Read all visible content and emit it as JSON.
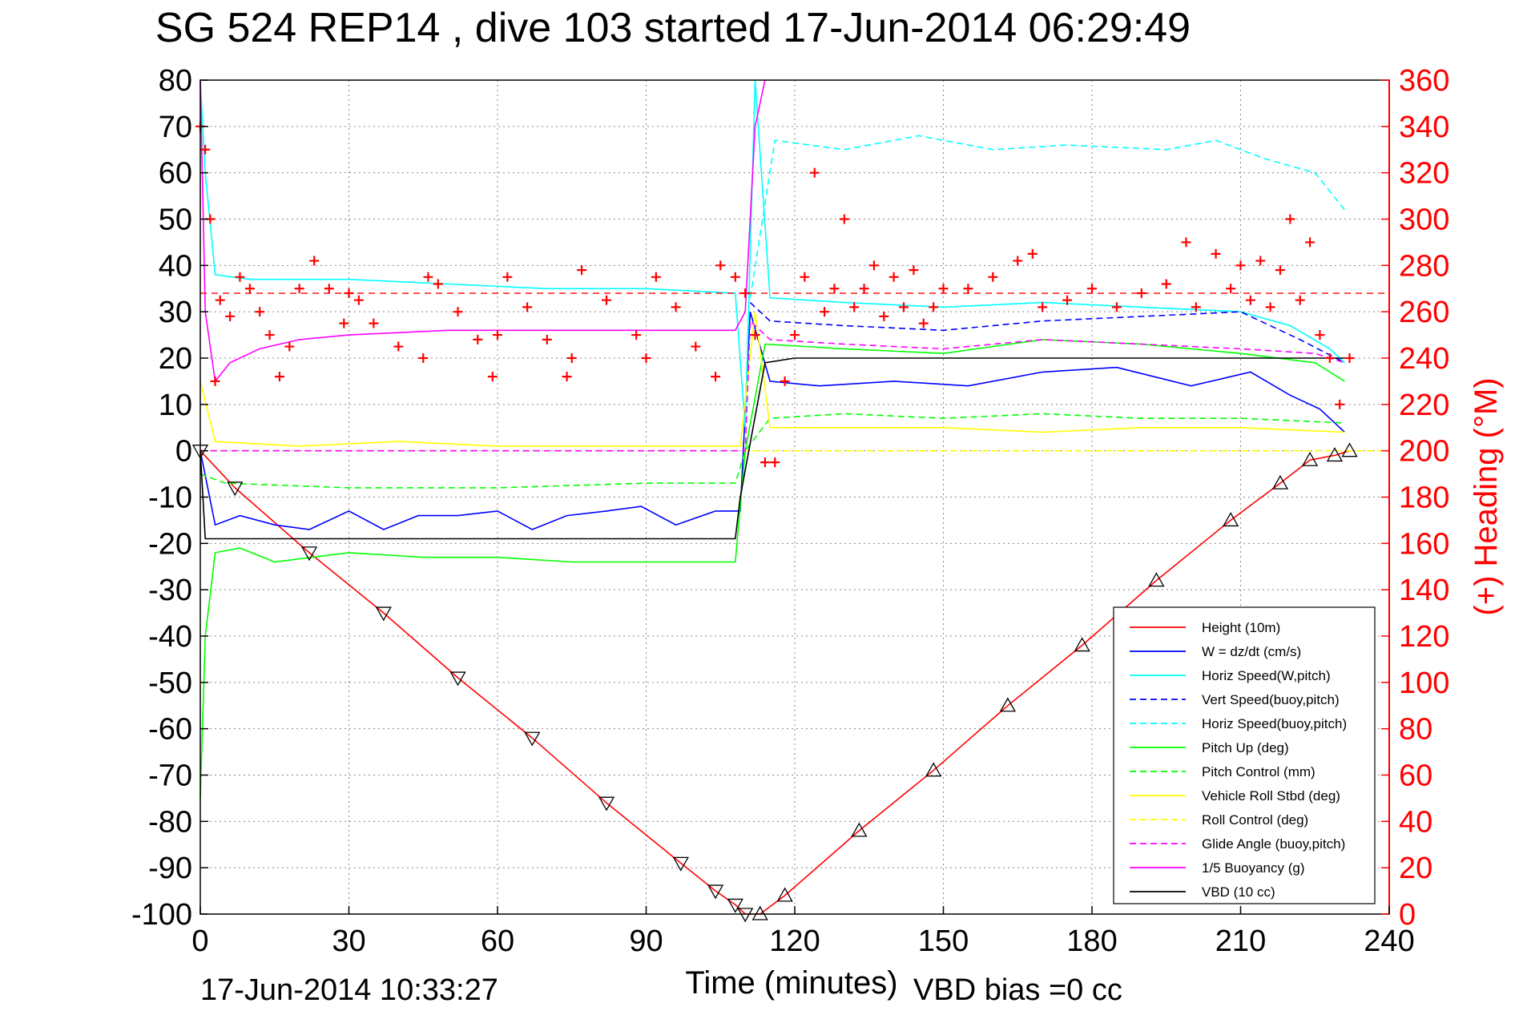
{
  "title": "SG 524   REP14  , dive 103 started 17-Jun-2014 06:29:49",
  "footer": {
    "timestamp": "17-Jun-2014 10:33:27",
    "vbd_bias": "VBD bias =0 cc"
  },
  "colors": {
    "height": "#ff0000",
    "w": "#0000ff",
    "horiz": "#00ffff",
    "pitch": "#00ff00",
    "roll": "#ffff00",
    "glide": "#ff00ff",
    "buoy": "#ff00ff",
    "vbd": "#000000",
    "heading": "#ff0000"
  },
  "chart_data": {
    "type": "line",
    "xlabel": "Time (minutes)",
    "ylabel_right": "(+) Heading (°M)",
    "xlim": [
      0,
      240
    ],
    "ylim": [
      -100,
      80
    ],
    "y2lim": [
      0,
      360
    ],
    "xticks": [
      0,
      30,
      60,
      90,
      120,
      150,
      180,
      210,
      240
    ],
    "yticks": [
      80,
      70,
      60,
      50,
      40,
      30,
      20,
      10,
      0,
      -10,
      -20,
      -30,
      -40,
      -50,
      -60,
      -70,
      -80,
      -90,
      -100
    ],
    "y2ticks": [
      360,
      340,
      320,
      300,
      280,
      260,
      240,
      220,
      200,
      180,
      160,
      140,
      120,
      100,
      80,
      60,
      40,
      20,
      0
    ],
    "grid": true,
    "legend_position": "bottom-right",
    "series": [
      {
        "name": "Height (10m)",
        "color": "#ff0000",
        "dash": "solid",
        "x": [
          0,
          7,
          22,
          37,
          52,
          67,
          82,
          97,
          104,
          108,
          110,
          113,
          118,
          133,
          148,
          163,
          178,
          193,
          208,
          218,
          224,
          229,
          232
        ],
        "y": [
          0,
          -8,
          -22,
          -35,
          -49,
          -62,
          -76,
          -89,
          -95,
          -98,
          -100,
          -100,
          -96,
          -82,
          -69,
          -55,
          -42,
          -28,
          -15,
          -7,
          -2,
          -1,
          0
        ]
      },
      {
        "name": "W = dz/dt (cm/s)",
        "color": "#0000ff",
        "dash": "solid",
        "x": [
          0,
          3,
          8,
          15,
          22,
          30,
          37,
          44,
          52,
          60,
          67,
          74,
          82,
          89,
          96,
          104,
          109,
          111,
          115,
          125,
          140,
          155,
          170,
          185,
          200,
          212,
          220,
          226,
          231
        ],
        "y": [
          0,
          -16,
          -14,
          -16,
          -17,
          -13,
          -17,
          -14,
          -14,
          -13,
          -17,
          -14,
          -13,
          -12,
          -16,
          -13,
          -13,
          30,
          15,
          14,
          15,
          14,
          17,
          18,
          14,
          17,
          12,
          9,
          4
        ]
      },
      {
        "name": "Horiz Speed(W,pitch)",
        "color": "#00ffff",
        "dash": "solid",
        "x": [
          0,
          1,
          3,
          10,
          30,
          50,
          70,
          90,
          108,
          110,
          112,
          115,
          130,
          150,
          170,
          190,
          210,
          220,
          228,
          231
        ],
        "y": [
          80,
          60,
          38,
          37,
          37,
          36,
          35,
          35,
          34,
          5,
          80,
          33,
          32,
          31,
          32,
          31,
          30,
          27,
          22,
          19
        ]
      },
      {
        "name": "Vert Speed(buoy,pitch)",
        "color": "#0000ff",
        "dash": "dash",
        "x": [
          111,
          115,
          130,
          150,
          170,
          190,
          210,
          222,
          231
        ],
        "y": [
          32,
          28,
          27,
          26,
          28,
          29,
          30,
          24,
          19
        ]
      },
      {
        "name": "Horiz Speed(buoy,pitch)",
        "color": "#00ffff",
        "dash": "dash",
        "x": [
          111,
          116,
          130,
          145,
          160,
          175,
          195,
          205,
          215,
          225,
          231
        ],
        "y": [
          33,
          67,
          65,
          68,
          65,
          66,
          65,
          67,
          63,
          60,
          52
        ]
      },
      {
        "name": "Pitch Up (deg)",
        "color": "#00ff00",
        "dash": "solid",
        "x": [
          0,
          1,
          3,
          8,
          15,
          30,
          45,
          60,
          75,
          90,
          108,
          110,
          114,
          130,
          150,
          170,
          190,
          210,
          225,
          231
        ],
        "y": [
          -75,
          -40,
          -22,
          -21,
          -24,
          -22,
          -23,
          -23,
          -24,
          -24,
          -24,
          0,
          23,
          22,
          21,
          24,
          23,
          21,
          19,
          15
        ]
      },
      {
        "name": "Pitch Control (mm)",
        "color": "#00ff00",
        "dash": "dash",
        "x": [
          0,
          5,
          30,
          60,
          90,
          108,
          110,
          115,
          130,
          150,
          170,
          190,
          210,
          231
        ],
        "y": [
          -5,
          -7,
          -8,
          -8,
          -7,
          -7,
          0,
          7,
          8,
          7,
          8,
          7,
          7,
          6
        ]
      },
      {
        "name": "Vehicle Roll Stbd (deg)",
        "color": "#ffff00",
        "dash": "solid",
        "x": [
          0,
          3,
          20,
          40,
          60,
          80,
          100,
          109,
          112,
          115,
          130,
          150,
          170,
          190,
          210,
          231
        ],
        "y": [
          15,
          2,
          1,
          2,
          1,
          1,
          1,
          1,
          30,
          5,
          5,
          5,
          4,
          5,
          5,
          4
        ]
      },
      {
        "name": "Roll Control (deg)",
        "color": "#ffff00",
        "dash": "dash",
        "x": [
          0,
          240
        ],
        "y": [
          0,
          0
        ]
      },
      {
        "name": "Glide Angle (buoy,pitch)",
        "color": "#ff00ff",
        "dash": "dash",
        "x": [
          0,
          110,
          111,
          115,
          130,
          150,
          170,
          190,
          210,
          225,
          231
        ],
        "y": [
          0,
          0,
          28,
          24,
          23,
          22,
          24,
          23,
          22,
          21,
          19
        ]
      },
      {
        "name": "1/5 Buoyancy (g)",
        "color": "#ff00ff",
        "dash": "solid",
        "x": [
          0,
          1,
          3,
          6,
          12,
          20,
          30,
          50,
          80,
          108,
          110,
          112,
          114
        ],
        "y": [
          80,
          30,
          15,
          19,
          22,
          24,
          25,
          26,
          26,
          26,
          30,
          70,
          80
        ]
      },
      {
        "name": "VBD (10 cc)",
        "color": "#000000",
        "dash": "solid",
        "x": [
          0,
          1,
          30,
          60,
          90,
          108,
          109,
          114,
          120,
          150,
          180,
          210,
          231
        ],
        "y": [
          0,
          -19,
          -19,
          -19,
          -19,
          -19,
          -10,
          19,
          20,
          20,
          20,
          20,
          20
        ]
      }
    ],
    "heading": {
      "name": "(+) Heading",
      "axis": "right",
      "color": "#ff0000",
      "target": 268,
      "x": [
        0,
        1,
        2,
        3,
        4,
        6,
        8,
        10,
        12,
        14,
        16,
        18,
        20,
        23,
        26,
        29,
        30,
        32,
        35,
        40,
        45,
        46,
        48,
        52,
        56,
        59,
        60,
        62,
        66,
        70,
        74,
        75,
        77,
        82,
        88,
        90,
        92,
        96,
        100,
        104,
        105,
        108,
        110,
        112,
        114,
        116,
        118,
        120,
        122,
        124,
        126,
        128,
        130,
        132,
        134,
        136,
        138,
        140,
        142,
        144,
        146,
        148,
        150,
        155,
        160,
        165,
        168,
        170,
        175,
        180,
        185,
        190,
        195,
        199,
        201,
        205,
        208,
        210,
        212,
        214,
        216,
        218,
        220,
        222,
        224,
        226,
        228,
        230,
        232
      ],
      "y": [
        340,
        330,
        300,
        230,
        265,
        258,
        275,
        270,
        260,
        250,
        232,
        245,
        270,
        282,
        270,
        255,
        268,
        265,
        255,
        245,
        240,
        275,
        272,
        260,
        248,
        232,
        250,
        275,
        262,
        248,
        232,
        240,
        278,
        265,
        250,
        240,
        275,
        262,
        245,
        232,
        280,
        275,
        268,
        250,
        195,
        195,
        230,
        250,
        275,
        320,
        260,
        270,
        300,
        262,
        270,
        280,
        258,
        275,
        262,
        278,
        255,
        262,
        270,
        270,
        275,
        282,
        285,
        262,
        265,
        270,
        262,
        268,
        272,
        290,
        262,
        285,
        270,
        280,
        265,
        282,
        262,
        278,
        300,
        265,
        290,
        250,
        240,
        220,
        240
      ]
    }
  }
}
